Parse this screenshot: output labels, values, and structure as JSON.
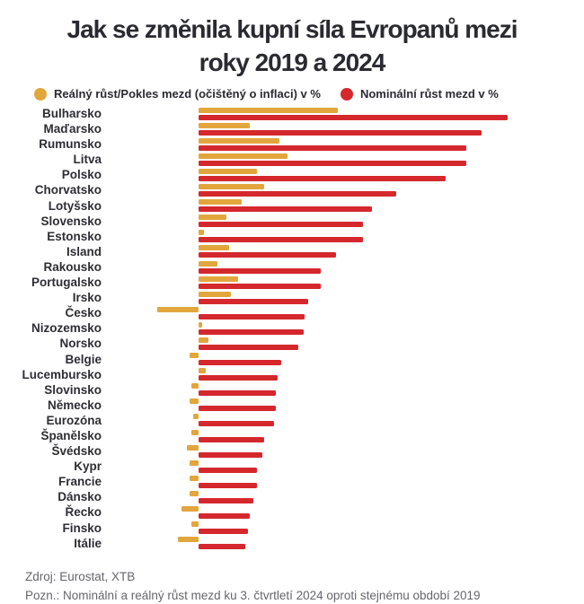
{
  "header": {
    "title_line1": "Jak se změnila kupní síla Evropanů mezi",
    "title_line2": "roky 2019 a 2024"
  },
  "colors": {
    "background": "#FFFFFF",
    "title_text": "#2A2A31",
    "real_bar_yellow": "#E2A63C",
    "nominal_bar_red": "#D4282D",
    "footer_text": "#65656D"
  },
  "chart_data": {
    "type": "bar",
    "orientation": "horizontal",
    "title": "Jak se změnila kupní síla Evropanů mezi roky 2019 a 2024",
    "unit": "%",
    "axis_note": "no visible axis, ticks or gridlines; values estimated from bar lengths",
    "xlim": [
      -13,
      95
    ],
    "legend_position": "top",
    "categories": [
      "Bulharsko",
      "Maďarsko",
      "Rumunsko",
      "Litva",
      "Polsko",
      "Chorvatsko",
      "Lotyšsko",
      "Slovensko",
      "Estonsko",
      "Island",
      "Rakousko",
      "Portugalsko",
      "Irsko",
      "Česko",
      "Nizozemsko",
      "Norsko",
      "Belgie",
      "Lucembursko",
      "Slovinsko",
      "Německo",
      "Eurozóna",
      "Španělsko",
      "Švédsko",
      "Kypr",
      "Francie",
      "Dánsko",
      "Řecko",
      "Finsko",
      "Itálie"
    ],
    "series": [
      {
        "name": "Reálný růst/Pokles mezd (očištěný o inflaci) v %",
        "color": "#E2A63C",
        "values": [
          40.5,
          15,
          23.5,
          26,
          17,
          19,
          12.5,
          8,
          1.5,
          9,
          5.5,
          11.5,
          9.5,
          -12,
          1,
          3,
          -2.5,
          2,
          -2,
          -2.5,
          -1.5,
          -2,
          -3.5,
          -2.5,
          -2.5,
          -2.5,
          -5,
          -2,
          -6
        ]
      },
      {
        "name": "Nominální růst mezd v %",
        "color": "#D4282D",
        "values": [
          90,
          82.5,
          78,
          78,
          72,
          57.5,
          50.5,
          48,
          48,
          40,
          35.5,
          35.5,
          32,
          31,
          30.5,
          29,
          24,
          23,
          22.5,
          22.5,
          22,
          19,
          18.5,
          17,
          17,
          16,
          15,
          14.5,
          13.5
        ]
      }
    ]
  },
  "footer": {
    "source": "Zdroj: Eurostat, XTB",
    "note": "Pozn.: Nominální a reálný růst mezd ku 3. čtvrtletí 2024 oproti stejnému období 2019"
  }
}
